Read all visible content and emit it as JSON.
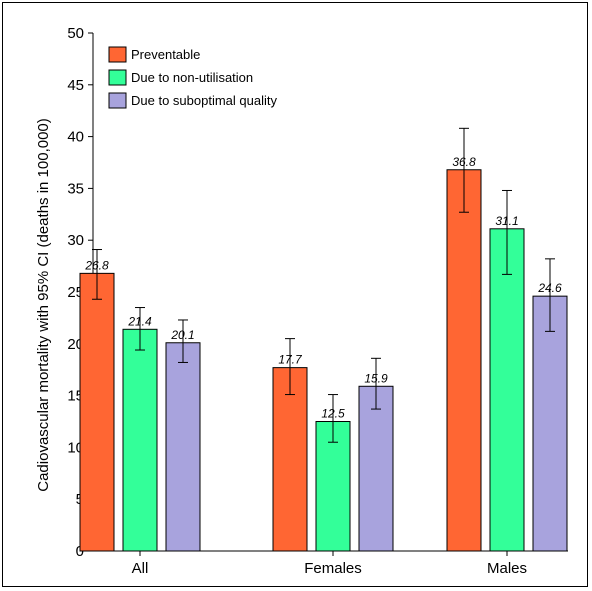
{
  "chart_data": {
    "type": "bar",
    "title": "",
    "xlabel": "",
    "ylabel": "Cadiovascular mortality with 95% CI (deaths in 100,000)",
    "ylim": [
      0,
      50
    ],
    "yticks": [
      0,
      5,
      10,
      15,
      20,
      25,
      30,
      35,
      40,
      45,
      50
    ],
    "categories": [
      "All",
      "Females",
      "Males"
    ],
    "series": [
      {
        "name": "Preventable",
        "color": "#ff6633",
        "values": [
          26.8,
          17.7,
          36.8
        ],
        "ci_low": [
          24.3,
          15.1,
          32.7
        ],
        "ci_high": [
          29.1,
          20.5,
          40.8
        ],
        "labels": [
          "26.8",
          "17.7",
          "36.8"
        ]
      },
      {
        "name": "Due to non-utilisation",
        "color": "#33ff99",
        "values": [
          21.4,
          12.5,
          31.1
        ],
        "ci_low": [
          19.4,
          10.5,
          26.7
        ],
        "ci_high": [
          23.5,
          15.1,
          34.8
        ],
        "labels": [
          "21.4",
          "12.5",
          "31.1"
        ]
      },
      {
        "name": "Due to suboptimal quality",
        "color": "#a8a3dd",
        "values": [
          20.1,
          15.9,
          24.6
        ],
        "ci_low": [
          18.2,
          13.7,
          21.2
        ],
        "ci_high": [
          22.3,
          18.6,
          28.2
        ],
        "labels": [
          "20.1",
          "15.9",
          "24.6"
        ]
      }
    ],
    "legend_position": "top-left",
    "grid": false,
    "error_bars": true
  }
}
